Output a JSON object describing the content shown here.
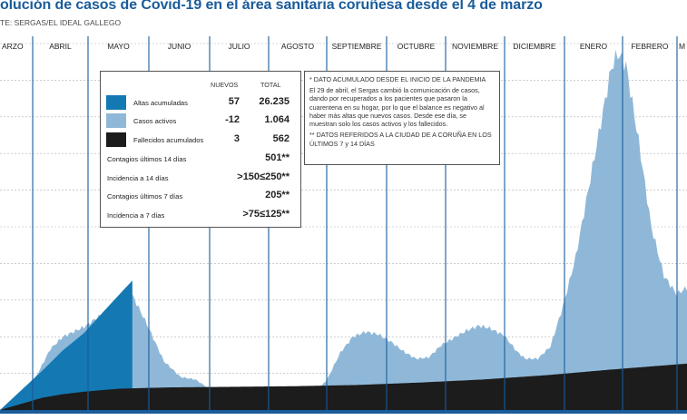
{
  "title": "olución de casos de Covid-19 en el área sanitaria coruñesa desde el 4 de marzo",
  "source": "TE: SERGAS/EL IDEAL GALLEGO",
  "legend": {
    "col_nuevos": "NUEVOS",
    "col_total": "TOTAL",
    "rows": [
      {
        "label": "Altas acumuladas",
        "nuevos": "57",
        "total": "26.235",
        "color": "#1479b3"
      },
      {
        "label": "Casos activos",
        "nuevos": "-12",
        "total": "1.064",
        "color": "#8fb8d8"
      },
      {
        "label": "Fallecidos acumulados",
        "nuevos": "3",
        "total": "562",
        "color": "#1c1c1c"
      }
    ],
    "extras": [
      {
        "label": "Contagios últimos 14 días",
        "value": "501**"
      },
      {
        "label": "Incidencia a 14 días",
        "value": ">150≤250**"
      },
      {
        "label": "Contagios últimos 7 días",
        "value": "205**"
      },
      {
        "label": "Incidencia a 7 días",
        "value": ">75≤125**"
      }
    ]
  },
  "note": {
    "line1": "* DATO ACUMULADO DESDE EL INICIO DE LA PANDEMIA",
    "line2": "El 29 de abril, el Sergas cambió la comunicación de casos, dando por recuperados a los pacientes que pasaron la cuarentena en su hogar, por lo que el balance es negativo al haber más altas que nuevos casos. Desde ese día, se muestran solo los casos activos y los fallecidos.",
    "line3": "** DATOS REFERIDOS A LA CIUDAD DE A CORUÑA EN LOS ÚLTIMOS 7 y 14 DÍAS"
  },
  "chart_data": {
    "type": "area",
    "months": [
      "ARZO",
      "ABRIL",
      "MAYO",
      "JUNIO",
      "JULIO",
      "AGOSTO",
      "SEPTIEMBRE",
      "OCTUBRE",
      "NOVIEMBRE",
      "DICIEMBRE",
      "ENERO",
      "FEBRERO",
      "M"
    ],
    "ylim": [
      0,
      3000
    ],
    "grid": true,
    "series": [
      {
        "name": "Casos activos",
        "color": "#8fb8d8",
        "points": [
          [
            0,
            0
          ],
          [
            6,
            30
          ],
          [
            12,
            120
          ],
          [
            18,
            300
          ],
          [
            24,
            500
          ],
          [
            30,
            600
          ],
          [
            40,
            680
          ],
          [
            55,
            860
          ],
          [
            63,
            940
          ],
          [
            70,
            700
          ],
          [
            78,
            400
          ],
          [
            86,
            270
          ],
          [
            93,
            250
          ],
          [
            100,
            170
          ],
          [
            106,
            80
          ],
          [
            112,
            60
          ],
          [
            118,
            50
          ],
          [
            124,
            45
          ],
          [
            130,
            40
          ],
          [
            136,
            48
          ],
          [
            143,
            70
          ],
          [
            150,
            130
          ],
          [
            156,
            260
          ],
          [
            162,
            470
          ],
          [
            168,
            600
          ],
          [
            174,
            640
          ],
          [
            180,
            620
          ],
          [
            186,
            560
          ],
          [
            192,
            480
          ],
          [
            198,
            420
          ],
          [
            204,
            430
          ],
          [
            210,
            530
          ],
          [
            216,
            590
          ],
          [
            222,
            650
          ],
          [
            228,
            690
          ],
          [
            233,
            670
          ],
          [
            240,
            610
          ],
          [
            246,
            480
          ],
          [
            250,
            420
          ],
          [
            256,
            420
          ],
          [
            262,
            520
          ],
          [
            268,
            850
          ],
          [
            274,
            1250
          ],
          [
            280,
            1800
          ],
          [
            286,
            2350
          ],
          [
            291,
            2800
          ],
          [
            294,
            2920
          ],
          [
            298,
            2820
          ],
          [
            304,
            2200
          ],
          [
            310,
            1500
          ],
          [
            316,
            1100
          ],
          [
            322,
            950
          ],
          [
            327,
            1000
          ]
        ]
      },
      {
        "name": "Altas acumuladas",
        "color": "#1479b3",
        "points": [
          [
            0,
            0
          ],
          [
            20,
            320
          ],
          [
            30,
            490
          ],
          [
            40,
            630
          ],
          [
            50,
            820
          ],
          [
            57,
            950
          ],
          [
            63,
            1060
          ]
        ]
      },
      {
        "name": "Fallecidos acumulados",
        "color": "#1c1c1c",
        "points": [
          [
            0,
            0
          ],
          [
            10,
            50
          ],
          [
            20,
            100
          ],
          [
            30,
            130
          ],
          [
            40,
            150
          ],
          [
            50,
            165
          ],
          [
            57,
            175
          ],
          [
            80,
            185
          ],
          [
            110,
            190
          ],
          [
            140,
            195
          ],
          [
            170,
            205
          ],
          [
            200,
            225
          ],
          [
            230,
            250
          ],
          [
            260,
            285
          ],
          [
            290,
            330
          ],
          [
            327,
            380
          ]
        ]
      }
    ]
  }
}
